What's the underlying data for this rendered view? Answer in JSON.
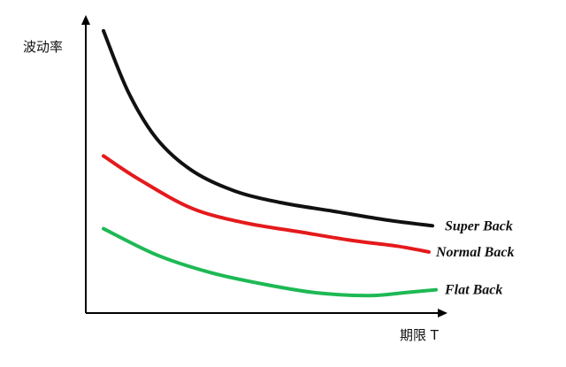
{
  "chart_data": {
    "type": "line",
    "title": "",
    "ylabel": "波动率",
    "xlabel": "期限 T",
    "xlim": [
      0,
      1
    ],
    "ylim": [
      0,
      1
    ],
    "grid": false,
    "series": [
      {
        "name": "Super Back",
        "color": "#111111",
        "x": [
          0.05,
          0.12,
          0.2,
          0.3,
          0.42,
          0.55,
          0.7,
          0.85,
          0.98
        ],
        "y": [
          0.97,
          0.76,
          0.6,
          0.49,
          0.42,
          0.38,
          0.35,
          0.32,
          0.3
        ]
      },
      {
        "name": "Normal Back",
        "color": "#e41a1c",
        "x": [
          0.05,
          0.15,
          0.3,
          0.45,
          0.6,
          0.75,
          0.88,
          0.97
        ],
        "y": [
          0.54,
          0.46,
          0.36,
          0.31,
          0.28,
          0.25,
          0.23,
          0.21
        ]
      },
      {
        "name": "Flat Back",
        "color": "#1db954",
        "x": [
          0.05,
          0.2,
          0.35,
          0.5,
          0.65,
          0.8,
          0.9,
          0.99
        ],
        "y": [
          0.29,
          0.2,
          0.14,
          0.1,
          0.07,
          0.06,
          0.07,
          0.08
        ]
      }
    ]
  }
}
